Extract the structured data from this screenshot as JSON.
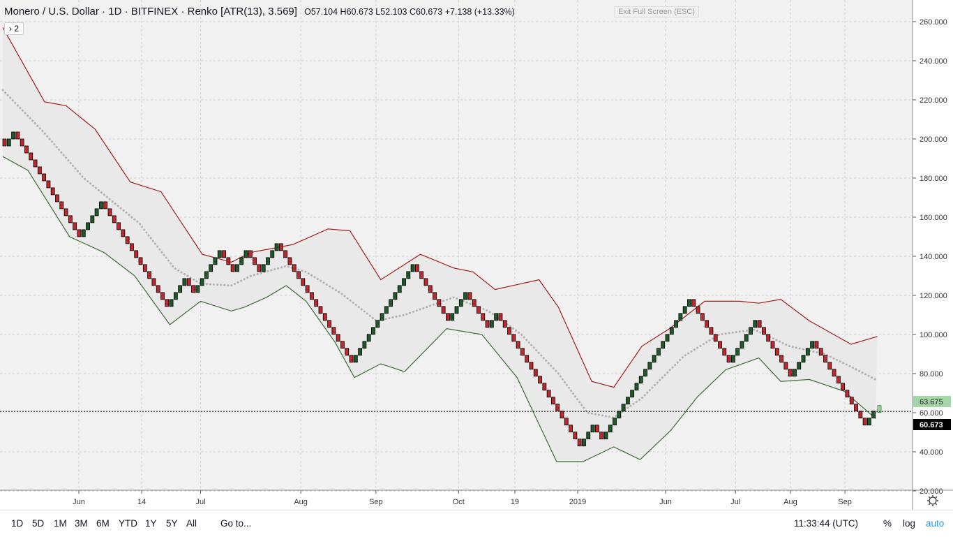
{
  "header": {
    "title": "Monero / U.S. Dollar",
    "interval": "1D",
    "exchange": "BITFINEX",
    "chart_type": "Renko [ATR(13), 3.569]",
    "open": "O57.104",
    "high": "H60.673",
    "low": "L52.103",
    "close": "C60.673",
    "change": "+7.138 (+13.33%)",
    "exit_fullscreen": "Exit Full Screen (ESC)",
    "collapse": "› 2"
  },
  "bottom": {
    "ranges": [
      "1D",
      "5D",
      "1M",
      "3M",
      "6M",
      "YTD",
      "1Y",
      "5Y",
      "All"
    ],
    "goto": "Go to...",
    "time": "11:33:44 (UTC)",
    "percent": "%",
    "log": "log",
    "auto": "auto"
  },
  "colors": {
    "up": "#1e5a2a",
    "down": "#c1272d",
    "upper": "#a31b1b",
    "lower": "#3d6b35",
    "mid": "#b0b0b0",
    "band": "#e9e9e9",
    "accent": "#2196f3"
  },
  "chart_data": {
    "type": "renko",
    "brick_size": 3.569,
    "ylim": [
      20,
      268
    ],
    "yticks": [
      "260.000",
      "240.000",
      "220.000",
      "200.000",
      "180.000",
      "160.000",
      "140.000",
      "120.000",
      "100.000",
      "80.000",
      "60.000",
      "40.000",
      "20.000"
    ],
    "ytick_values": [
      260,
      240,
      220,
      200,
      180,
      160,
      140,
      120,
      100,
      80,
      60,
      40,
      20
    ],
    "xticks": [
      {
        "label": "Jun",
        "i": 17.3
      },
      {
        "label": "14",
        "i": 31.6
      },
      {
        "label": "Jul",
        "i": 45
      },
      {
        "label": "Aug",
        "i": 67.8
      },
      {
        "label": "Sep",
        "i": 84.9
      },
      {
        "label": "Oct",
        "i": 103.7
      },
      {
        "label": "19",
        "i": 116.5
      },
      {
        "label": "2019",
        "i": 130.8
      },
      {
        "label": "Jun",
        "i": 150.8
      },
      {
        "label": "Jul",
        "i": 166.7
      },
      {
        "label": "Aug",
        "i": 179.2
      },
      {
        "label": "Sep",
        "i": 191.6
      }
    ],
    "path": [
      200,
      196,
      203,
      199,
      150,
      167,
      114,
      128,
      121,
      142,
      132,
      142,
      132,
      146,
      86,
      135,
      107,
      121,
      104,
      110,
      42,
      52,
      45,
      117,
      87,
      106,
      77,
      96,
      55,
      61
    ],
    "last_price": "60.673",
    "pending_price": "63.675",
    "upper": [
      [
        0,
        257
      ],
      [
        9.5,
        219
      ],
      [
        14.4,
        217
      ],
      [
        21,
        205
      ],
      [
        29,
        178
      ],
      [
        36,
        173
      ],
      [
        45.4,
        141
      ],
      [
        52,
        137
      ],
      [
        56.5,
        142
      ],
      [
        66,
        146
      ],
      [
        74,
        154
      ],
      [
        79,
        153
      ],
      [
        86,
        128
      ],
      [
        95,
        141
      ],
      [
        102.6,
        134
      ],
      [
        107,
        132
      ],
      [
        112,
        123
      ],
      [
        118,
        126
      ],
      [
        122,
        128
      ],
      [
        126.4,
        114
      ],
      [
        134,
        76
      ],
      [
        139,
        73
      ],
      [
        145.4,
        94
      ],
      [
        151.7,
        103
      ],
      [
        159.7,
        117
      ],
      [
        167.6,
        117
      ],
      [
        172,
        116
      ],
      [
        177,
        118
      ],
      [
        183.5,
        107
      ],
      [
        193,
        95
      ],
      [
        199,
        99
      ]
    ],
    "lower": [
      [
        0,
        191
      ],
      [
        5.7,
        184
      ],
      [
        15.2,
        150
      ],
      [
        23,
        142
      ],
      [
        30,
        130
      ],
      [
        38,
        105
      ],
      [
        45,
        117
      ],
      [
        52,
        112
      ],
      [
        55,
        114
      ],
      [
        60,
        119
      ],
      [
        64.5,
        125
      ],
      [
        69,
        117
      ],
      [
        75.6,
        96
      ],
      [
        80,
        78
      ],
      [
        86,
        85
      ],
      [
        91.4,
        81
      ],
      [
        101,
        103
      ],
      [
        109,
        100
      ],
      [
        117,
        78
      ],
      [
        126,
        35
      ],
      [
        132,
        35
      ],
      [
        139,
        42.5
      ],
      [
        145,
        36
      ],
      [
        152,
        51
      ],
      [
        158,
        68
      ],
      [
        164.5,
        82
      ],
      [
        172,
        88
      ],
      [
        177,
        76
      ],
      [
        183.5,
        77
      ],
      [
        191.4,
        71
      ],
      [
        198.6,
        57
      ]
    ],
    "mid": [
      [
        0,
        225
      ],
      [
        9.5,
        203
      ],
      [
        18.4,
        180
      ],
      [
        31,
        157
      ],
      [
        39,
        134
      ],
      [
        45,
        126
      ],
      [
        52,
        125
      ],
      [
        56.5,
        130
      ],
      [
        64.5,
        135
      ],
      [
        69,
        132
      ],
      [
        77,
        121
      ],
      [
        85,
        107
      ],
      [
        91.4,
        110
      ],
      [
        102.6,
        119
      ],
      [
        110.5,
        112
      ],
      [
        118,
        100
      ],
      [
        126.4,
        80
      ],
      [
        133,
        60
      ],
      [
        139,
        57.5
      ],
      [
        145.4,
        67.5
      ],
      [
        155,
        89
      ],
      [
        163,
        100
      ],
      [
        171,
        102.5
      ],
      [
        179,
        94
      ],
      [
        187,
        90
      ],
      [
        193,
        83.5
      ],
      [
        199,
        76.5
      ]
    ]
  }
}
